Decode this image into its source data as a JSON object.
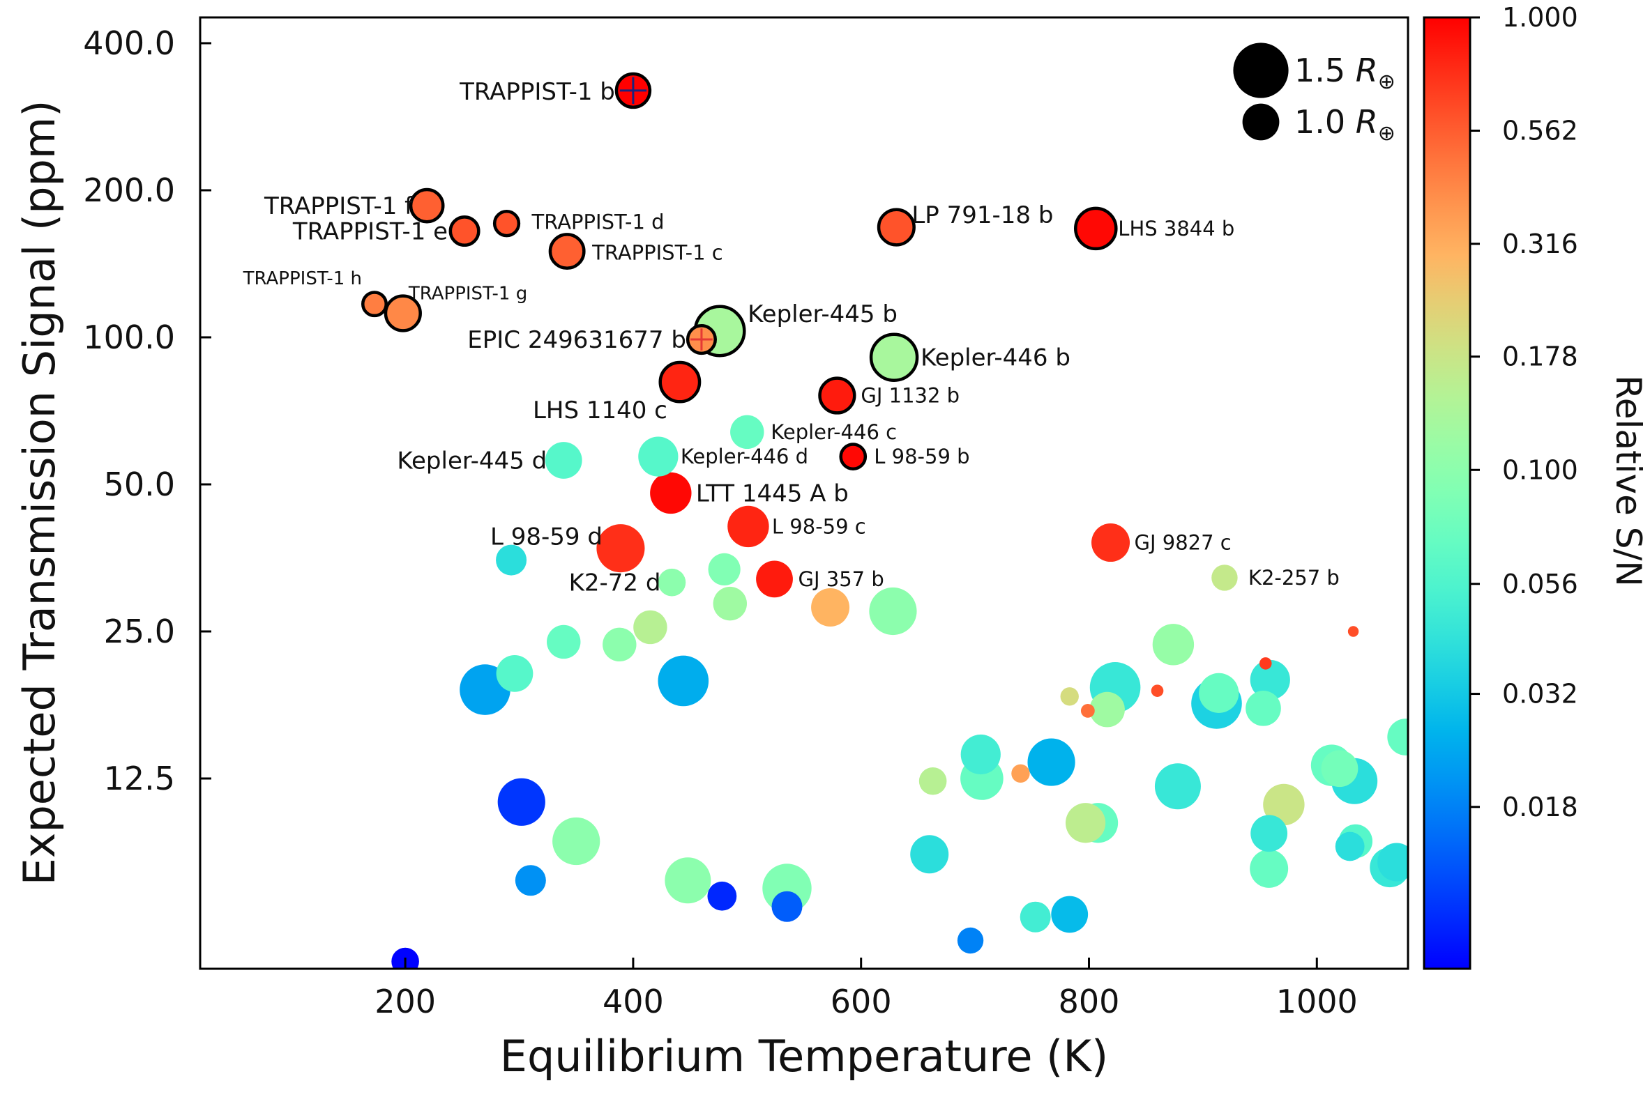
{
  "chart_data": {
    "type": "scatter",
    "xlabel": "Equilibrium Temperature (K)",
    "ylabel": "Expected Transmission Signal (ppm)",
    "xlim": [
      20,
      1080
    ],
    "ylim": [
      0,
      430
    ],
    "x_ticks": [
      200,
      400,
      600,
      800,
      1000
    ],
    "x_tick_labels": [
      "200",
      "400",
      "600",
      "800",
      "1000"
    ],
    "y_ticks": [
      12.5,
      25,
      50,
      100,
      200,
      400
    ],
    "y_tick_labels": [
      "12.5",
      "25.0",
      "50.0",
      "100.0",
      "200.0",
      "400.0"
    ],
    "y_scale": "log2, with a broken lower region below 12.5 ppm",
    "colorbar": {
      "label": "Relative S/N",
      "scale": "log",
      "range": [
        0.0079,
        1.0
      ],
      "ticks": [
        1.0,
        0.562,
        0.316,
        0.178,
        0.1,
        0.056,
        0.032,
        0.018
      ],
      "tick_labels": [
        "1.000",
        "0.562",
        "0.316",
        "0.178",
        "0.100",
        "0.056",
        "0.032",
        "0.018"
      ],
      "colormap": "rainbow"
    },
    "size_legend": {
      "placement": "top-right",
      "entries": [
        {
          "label_value": "1.5",
          "radius_earth": 1.5
        },
        {
          "label_value": "1.0",
          "radius_earth": 1.0
        }
      ],
      "unit_symbol": "R",
      "unit_subscript": "⊕"
    },
    "points": [
      {
        "name": "TRAPPIST-1 b",
        "label": "TRAPPIST-1 b",
        "label_color": "#1a237e",
        "x": 400,
        "y": 320,
        "sn": 1.0,
        "rp": 1.09,
        "outline": true,
        "cross": true,
        "fs": 34
      },
      {
        "name": "TRAPPIST-1 f",
        "label": "TRAPPIST-1 f",
        "x": 219,
        "y": 186,
        "sn": 0.55,
        "rp": 1.05,
        "outline": true,
        "fs": 34
      },
      {
        "name": "TRAPPIST-1 e",
        "label": "TRAPPIST-1 e",
        "x": 252,
        "y": 165,
        "sn": 0.6,
        "rp": 0.92,
        "outline": true,
        "fs": 34
      },
      {
        "name": "TRAPPIST-1 d",
        "label": "TRAPPIST-1 d",
        "x": 289,
        "y": 171,
        "sn": 0.6,
        "rp": 0.79,
        "outline": true,
        "fs": 29
      },
      {
        "name": "TRAPPIST-1 c",
        "label": "TRAPPIST-1 c",
        "x": 342,
        "y": 150,
        "sn": 0.55,
        "rp": 1.1,
        "outline": true,
        "fs": 29
      },
      {
        "name": "TRAPPIST-1 h",
        "label": "TRAPPIST-1 h",
        "x": 173,
        "y": 117,
        "sn": 0.45,
        "rp": 0.76,
        "outline": true,
        "fs": 26
      },
      {
        "name": "TRAPPIST-1 g",
        "label": "TRAPPIST-1 g",
        "x": 198,
        "y": 112,
        "sn": 0.42,
        "rp": 1.13,
        "outline": true,
        "fs": 26
      },
      {
        "name": "EPIC 249631677 b",
        "label": "EPIC 249631677 b",
        "label_color": "#e53935",
        "x": 460,
        "y": 99,
        "sn": 0.4,
        "rp": 0.9,
        "outline": true,
        "cross": true,
        "fs": 34
      },
      {
        "name": "Kepler-445 b",
        "label": "Kepler-445 b",
        "x": 476,
        "y": 103,
        "sn": 0.13,
        "rp": 1.6,
        "outline": true,
        "fs": 34
      },
      {
        "name": "Kepler-446 b",
        "label": "Kepler-446 b",
        "x": 629,
        "y": 91,
        "sn": 0.13,
        "rp": 1.5,
        "outline": true,
        "fs": 34
      },
      {
        "name": "LHS 1140 c",
        "label": "LHS 1140 c",
        "x": 441,
        "y": 81,
        "sn": 0.8,
        "rp": 1.28,
        "outline": true,
        "fs": 34
      },
      {
        "name": "GJ 1132 b",
        "label": "GJ 1132 b",
        "x": 579,
        "y": 76,
        "sn": 0.85,
        "rp": 1.13,
        "outline": true,
        "fs": 29
      },
      {
        "name": "LP 791-18 b",
        "label": "LP 791-18 b",
        "x": 631,
        "y": 168,
        "sn": 0.6,
        "rp": 1.15,
        "outline": true,
        "fs": 34
      },
      {
        "name": "LHS 3844 b",
        "label": "LHS 3844 b",
        "x": 806,
        "y": 167,
        "sn": 0.95,
        "rp": 1.32,
        "outline": true,
        "fs": 29
      },
      {
        "name": "L 98-59 b",
        "label": "L 98-59 b",
        "x": 593,
        "y": 57,
        "sn": 0.95,
        "rp": 0.8,
        "outline": true,
        "fs": 29
      },
      {
        "name": "Kepler-446 c",
        "label": "Kepler-446 c",
        "x": 500,
        "y": 64,
        "sn": 0.07,
        "rp": 1.1,
        "outline": false,
        "fs": 29
      },
      {
        "name": "Kepler-446 d",
        "label": "Kepler-446 d",
        "x": 422,
        "y": 57,
        "sn": 0.06,
        "rp": 1.3,
        "outline": false,
        "fs": 29
      },
      {
        "name": "Kepler-445 d",
        "label": "Kepler-445 d",
        "x": 339,
        "y": 56,
        "sn": 0.06,
        "rp": 1.2,
        "outline": false,
        "fs": 34
      },
      {
        "name": "LTT 1445 A b",
        "label": "LTT 1445 A b",
        "x": 433,
        "y": 48,
        "sn": 0.95,
        "rp": 1.35,
        "outline": false,
        "fs": 34
      },
      {
        "name": "L 98-59 d",
        "label": "L 98-59 d",
        "x": 389,
        "y": 37,
        "sn": 0.75,
        "rp": 1.57,
        "outline": false,
        "fs": 34
      },
      {
        "name": "L 98-59 c",
        "label": "L 98-59 c",
        "x": 501,
        "y": 41,
        "sn": 0.8,
        "rp": 1.35,
        "outline": false,
        "fs": 29
      },
      {
        "name": "GJ 9827 c",
        "label": "GJ 9827 c",
        "x": 819,
        "y": 38,
        "sn": 0.75,
        "rp": 1.25,
        "outline": false,
        "fs": 29
      },
      {
        "name": "K2-72 d",
        "label": "K2-72 d",
        "x": 434,
        "y": 31.5,
        "sn": 0.1,
        "rp": 0.9,
        "outline": false,
        "fs": 34
      },
      {
        "name": "GJ 357 b",
        "label": "GJ 357 b",
        "x": 524,
        "y": 32,
        "sn": 0.85,
        "rp": 1.2,
        "outline": false,
        "fs": 29
      },
      {
        "name": "K2-257 b",
        "label": "K2-257 b",
        "x": 919,
        "y": 32.2,
        "sn": 0.17,
        "rp": 0.85,
        "outline": false,
        "fs": 29
      },
      {
        "name": "unlabeled-1",
        "x": 293,
        "y": 35,
        "sn": 0.04,
        "rp": 1.0,
        "outline": false
      },
      {
        "name": "unlabeled-2",
        "x": 480,
        "y": 33.5,
        "sn": 0.09,
        "rp": 1.05,
        "outline": false
      },
      {
        "name": "unlabeled-3",
        "x": 485,
        "y": 28.5,
        "sn": 0.12,
        "rp": 1.1,
        "outline": false
      },
      {
        "name": "unlabeled-4",
        "x": 573,
        "y": 28,
        "sn": 0.3,
        "rp": 1.25,
        "outline": false
      },
      {
        "name": "unlabeled-5",
        "x": 628,
        "y": 27.5,
        "sn": 0.1,
        "rp": 1.55,
        "outline": false
      },
      {
        "name": "unlabeled-6",
        "x": 415,
        "y": 25.5,
        "sn": 0.15,
        "rp": 1.1,
        "outline": false
      },
      {
        "name": "unlabeled-7",
        "x": 339,
        "y": 23.8,
        "sn": 0.07,
        "rp": 1.1,
        "outline": false
      },
      {
        "name": "unlabeled-8",
        "x": 388,
        "y": 23.5,
        "sn": 0.1,
        "rp": 1.1,
        "outline": false
      },
      {
        "name": "unlabeled-9",
        "x": 874,
        "y": 23.5,
        "sn": 0.11,
        "rp": 1.35,
        "outline": false
      },
      {
        "name": "unlabeled-10",
        "x": 1032,
        "y": 25,
        "sn": 0.62,
        "rp": 0.35,
        "outline": false
      },
      {
        "name": "unlabeled-11",
        "x": 296,
        "y": 20.5,
        "sn": 0.06,
        "rp": 1.2,
        "outline": false
      },
      {
        "name": "unlabeled-12",
        "x": 270,
        "y": 19,
        "sn": 0.023,
        "rp": 1.65,
        "outline": false
      },
      {
        "name": "unlabeled-13",
        "x": 444,
        "y": 19.8,
        "sn": 0.025,
        "rp": 1.65,
        "outline": false
      },
      {
        "name": "unlabeled-14",
        "x": 955,
        "y": 21.5,
        "sn": 0.7,
        "rp": 0.4,
        "outline": false
      },
      {
        "name": "unlabeled-15",
        "x": 959,
        "y": 19.9,
        "sn": 0.045,
        "rp": 1.3,
        "outline": false
      },
      {
        "name": "unlabeled-16",
        "x": 823,
        "y": 19.2,
        "sn": 0.045,
        "rp": 1.65,
        "outline": false
      },
      {
        "name": "unlabeled-17",
        "x": 860,
        "y": 18.9,
        "sn": 0.62,
        "rp": 0.4,
        "outline": false
      },
      {
        "name": "unlabeled-18",
        "x": 783,
        "y": 18.4,
        "sn": 0.2,
        "rp": 0.6,
        "outline": false
      },
      {
        "name": "unlabeled-19",
        "x": 914,
        "y": 18.7,
        "sn": 0.07,
        "rp": 1.3,
        "outline": false
      },
      {
        "name": "unlabeled-20",
        "x": 912,
        "y": 17.8,
        "sn": 0.035,
        "rp": 1.65,
        "outline": false
      },
      {
        "name": "unlabeled-21",
        "x": 816,
        "y": 17.3,
        "sn": 0.12,
        "rp": 1.15,
        "outline": false
      },
      {
        "name": "unlabeled-22",
        "x": 799,
        "y": 17.2,
        "sn": 0.5,
        "rp": 0.45,
        "outline": false
      },
      {
        "name": "unlabeled-23",
        "x": 953,
        "y": 17.4,
        "sn": 0.07,
        "rp": 1.15,
        "outline": false
      },
      {
        "name": "unlabeled-24",
        "x": 1078,
        "y": 15.2,
        "sn": 0.07,
        "rp": 1.2,
        "outline": false
      },
      {
        "name": "unlabeled-25",
        "x": 705,
        "y": 14,
        "sn": 0.05,
        "rp": 1.3,
        "outline": false
      },
      {
        "name": "unlabeled-26",
        "x": 767,
        "y": 13.5,
        "sn": 0.026,
        "rp": 1.55,
        "outline": false
      },
      {
        "name": "unlabeled-27",
        "x": 1013,
        "y": 13.3,
        "sn": 0.07,
        "rp": 1.35,
        "outline": false
      },
      {
        "name": "unlabeled-28",
        "x": 1020,
        "y": 13.1,
        "sn": 0.08,
        "rp": 1.2,
        "outline": false
      },
      {
        "name": "unlabeled-29",
        "x": 1033,
        "y": 12.4,
        "sn": 0.04,
        "rp": 1.5,
        "outline": false
      },
      {
        "name": "unlabeled-30",
        "x": 663,
        "y": 12.4,
        "sn": 0.15,
        "rp": 0.9,
        "outline": false
      },
      {
        "name": "unlabeled-31",
        "x": 706,
        "y": 12.5,
        "sn": 0.07,
        "rp": 1.4,
        "outline": false
      },
      {
        "name": "unlabeled-32",
        "x": 740,
        "y": 12.8,
        "sn": 0.35,
        "rp": 0.6,
        "outline": false
      },
      {
        "name": "unlabeled-33",
        "x": 878,
        "y": 12.2,
        "sn": 0.045,
        "rp": 1.5,
        "outline": false
      },
      {
        "name": "unlabeled-34",
        "x": 302,
        "y": 11.6,
        "sn": 0.011,
        "rp": 1.55,
        "outline": false
      },
      {
        "name": "unlabeled-35",
        "x": 971,
        "y": 11.5,
        "sn": 0.18,
        "rp": 1.35,
        "outline": false
      },
      {
        "name": "unlabeled-36",
        "x": 808,
        "y": 10.8,
        "sn": 0.07,
        "rp": 1.3,
        "outline": false
      },
      {
        "name": "unlabeled-37",
        "x": 797,
        "y": 10.8,
        "sn": 0.16,
        "rp": 1.3,
        "outline": false
      },
      {
        "name": "unlabeled-38",
        "x": 958,
        "y": 10.4,
        "sn": 0.045,
        "rp": 1.2,
        "outline": false
      },
      {
        "name": "unlabeled-39",
        "x": 350,
        "y": 10.1,
        "sn": 0.1,
        "rp": 1.55,
        "outline": false
      },
      {
        "name": "unlabeled-40",
        "x": 1034,
        "y": 10.1,
        "sn": 0.06,
        "rp": 1.1,
        "outline": false
      },
      {
        "name": "unlabeled-41",
        "x": 1029,
        "y": 9.9,
        "sn": 0.04,
        "rp": 0.95,
        "outline": false
      },
      {
        "name": "unlabeled-42",
        "x": 660,
        "y": 9.6,
        "sn": 0.04,
        "rp": 1.25,
        "outline": false
      },
      {
        "name": "unlabeled-43",
        "x": 1070,
        "y": 9.3,
        "sn": 0.04,
        "rp": 1.25,
        "outline": false
      },
      {
        "name": "unlabeled-44",
        "x": 1064,
        "y": 9.1,
        "sn": 0.045,
        "rp": 1.3,
        "outline": false
      },
      {
        "name": "unlabeled-45",
        "x": 958,
        "y": 9.05,
        "sn": 0.07,
        "rp": 1.25,
        "outline": false
      },
      {
        "name": "unlabeled-46",
        "x": 310,
        "y": 8.6,
        "sn": 0.02,
        "rp": 1.0,
        "outline": false
      },
      {
        "name": "unlabeled-47",
        "x": 448,
        "y": 8.6,
        "sn": 0.1,
        "rp": 1.5,
        "outline": false
      },
      {
        "name": "unlabeled-48",
        "x": 535,
        "y": 8.3,
        "sn": 0.09,
        "rp": 1.6,
        "outline": false
      },
      {
        "name": "unlabeled-49",
        "x": 478,
        "y": 8.0,
        "sn": 0.01,
        "rp": 0.95,
        "outline": false
      },
      {
        "name": "unlabeled-50",
        "x": 535,
        "y": 7.6,
        "sn": 0.014,
        "rp": 1.0,
        "outline": false
      },
      {
        "name": "unlabeled-51",
        "x": 783,
        "y": 7.3,
        "sn": 0.028,
        "rp": 1.2,
        "outline": false
      },
      {
        "name": "unlabeled-52",
        "x": 753,
        "y": 7.2,
        "sn": 0.05,
        "rp": 1.0,
        "outline": false
      },
      {
        "name": "unlabeled-53",
        "x": 696,
        "y": 6.3,
        "sn": 0.018,
        "rp": 0.85,
        "outline": false
      },
      {
        "name": "unlabeled-54",
        "x": 200,
        "y": 5.5,
        "sn": 0.008,
        "rp": 0.9,
        "outline": false
      }
    ]
  }
}
